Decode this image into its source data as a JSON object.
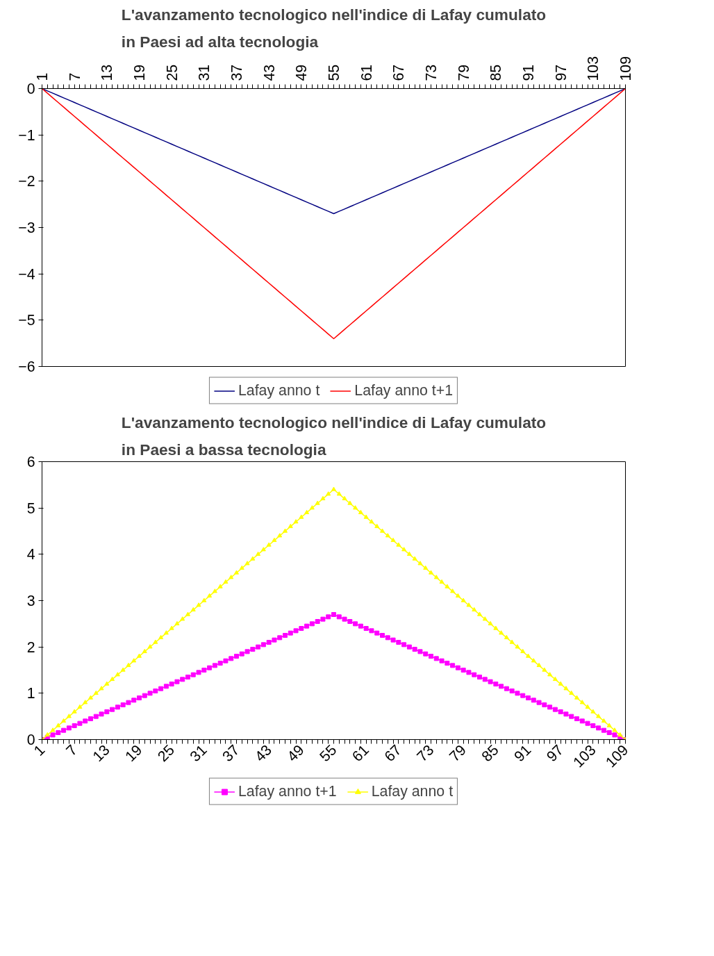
{
  "chart_data": [
    {
      "type": "line",
      "title": "L'avanzamento tecnologico nell'indice di Lafay cumulato\nin Paesi ad alta tecnologia",
      "categories": [
        "1",
        null,
        null,
        null,
        null,
        null,
        "7",
        null,
        null,
        null,
        null,
        null,
        "13",
        null,
        null,
        null,
        null,
        null,
        "19",
        null,
        null,
        null,
        null,
        null,
        "25",
        null,
        null,
        null,
        null,
        null,
        "31",
        null,
        null,
        null,
        null,
        null,
        "37",
        null,
        null,
        null,
        null,
        null,
        "43",
        null,
        null,
        null,
        null,
        null,
        "49",
        null,
        null,
        null,
        null,
        null,
        "55",
        null,
        null,
        null,
        null,
        null,
        "61",
        null,
        null,
        null,
        null,
        null,
        "67",
        null,
        null,
        null,
        null,
        null,
        "73",
        null,
        null,
        null,
        null,
        null,
        "79",
        null,
        null,
        null,
        null,
        null,
        "85",
        null,
        null,
        null,
        null,
        null,
        "91",
        null,
        null,
        null,
        null,
        null,
        "97",
        null,
        null,
        null,
        null,
        null,
        "103",
        null,
        null,
        null,
        null,
        null,
        "109"
      ],
      "ylim": [
        -6,
        0
      ],
      "yticks": [
        -6,
        -5,
        -4,
        -3,
        -2,
        -1,
        0
      ],
      "grid": false,
      "legend": "bottom",
      "marker": "none",
      "series": [
        {
          "name": "Lafay anno t",
          "color": "#000080",
          "values": [
            0,
            -0.05,
            -0.1,
            -0.15,
            -0.2,
            -0.25,
            -0.3,
            -0.35,
            -0.4,
            -0.45,
            -0.5,
            -0.55,
            -0.6,
            -0.65,
            -0.7,
            -0.75,
            -0.8,
            -0.85,
            -0.9,
            -0.95,
            -1,
            -1.05,
            -1.1,
            -1.15,
            -1.2,
            -1.25,
            -1.3,
            -1.35,
            -1.4,
            -1.45,
            -1.5,
            -1.55,
            -1.6,
            -1.65,
            -1.7,
            -1.75,
            -1.8,
            -1.85,
            -1.9,
            -1.95,
            -2,
            -2.05,
            -2.1,
            -2.15,
            -2.2,
            -2.25,
            -2.3,
            -2.35,
            -2.4,
            -2.45,
            -2.5,
            -2.55,
            -2.6,
            -2.65,
            -2.7,
            -2.65,
            -2.6,
            -2.55,
            -2.5,
            -2.45,
            -2.4,
            -2.35,
            -2.3,
            -2.25,
            -2.2,
            -2.15,
            -2.1,
            -2.05,
            -2,
            -1.95,
            -1.9,
            -1.85,
            -1.8,
            -1.75,
            -1.7,
            -1.65,
            -1.6,
            -1.55,
            -1.5,
            -1.45,
            -1.4,
            -1.35,
            -1.3,
            -1.25,
            -1.2,
            -1.15,
            -1.1,
            -1.05,
            -1,
            -0.95,
            -0.9,
            -0.85,
            -0.8,
            -0.75,
            -0.7,
            -0.65,
            -0.6,
            -0.55,
            -0.5,
            -0.45,
            -0.4,
            -0.35,
            -0.3,
            -0.25,
            -0.2,
            -0.15,
            -0.1,
            -0.05,
            0
          ]
        },
        {
          "name": "Lafay anno t+1",
          "color": "#ff0000",
          "values": [
            0,
            -0.1,
            -0.2,
            -0.3,
            -0.4,
            -0.5,
            -0.6,
            -0.7,
            -0.8,
            -0.9,
            -1,
            -1.1,
            -1.2,
            -1.3,
            -1.4,
            -1.5,
            -1.6,
            -1.7,
            -1.8,
            -1.9,
            -2,
            -2.1,
            -2.2,
            -2.3,
            -2.4,
            -2.5,
            -2.6,
            -2.7,
            -2.8,
            -2.9,
            -3,
            -3.1,
            -3.2,
            -3.3,
            -3.4,
            -3.5,
            -3.6,
            -3.7,
            -3.8,
            -3.9,
            -4,
            -4.1,
            -4.2,
            -4.3,
            -4.4,
            -4.5,
            -4.6,
            -4.7,
            -4.8,
            -4.9,
            -5,
            -5.1,
            -5.2,
            -5.3,
            -5.4,
            -5.3,
            -5.2,
            -5.1,
            -5,
            -4.9,
            -4.8,
            -4.7,
            -4.6,
            -4.5,
            -4.4,
            -4.3,
            -4.2,
            -4.1,
            -4,
            -3.9,
            -3.8,
            -3.7,
            -3.6,
            -3.5,
            -3.4,
            -3.3,
            -3.2,
            -3.1,
            -3,
            -2.9,
            -2.8,
            -2.7,
            -2.6,
            -2.5,
            -2.4,
            -2.3,
            -2.2,
            -2.1,
            -2,
            -1.9,
            -1.8,
            -1.7,
            -1.6,
            -1.5,
            -1.4,
            -1.3,
            -1.2,
            -1.1,
            -1,
            -0.9,
            -0.8,
            -0.7,
            -0.6,
            -0.5,
            -0.4,
            -0.3,
            -0.2,
            -0.1,
            0
          ]
        }
      ]
    },
    {
      "type": "line",
      "title": "L'avanzamento tecnologico nell'indice di Lafay cumulato\nin Paesi a bassa tecnologia",
      "categories": [
        "1",
        null,
        null,
        null,
        null,
        null,
        "7",
        null,
        null,
        null,
        null,
        null,
        "13",
        null,
        null,
        null,
        null,
        null,
        "19",
        null,
        null,
        null,
        null,
        null,
        "25",
        null,
        null,
        null,
        null,
        null,
        "31",
        null,
        null,
        null,
        null,
        null,
        "37",
        null,
        null,
        null,
        null,
        null,
        "43",
        null,
        null,
        null,
        null,
        null,
        "49",
        null,
        null,
        null,
        null,
        null,
        "55",
        null,
        null,
        null,
        null,
        null,
        "61",
        null,
        null,
        null,
        null,
        null,
        "67",
        null,
        null,
        null,
        null,
        null,
        "73",
        null,
        null,
        null,
        null,
        null,
        "79",
        null,
        null,
        null,
        null,
        null,
        "85",
        null,
        null,
        null,
        null,
        null,
        "91",
        null,
        null,
        null,
        null,
        null,
        "97",
        null,
        null,
        null,
        null,
        null,
        "103",
        null,
        null,
        null,
        null,
        null,
        "109"
      ],
      "ylim": [
        0,
        6
      ],
      "yticks": [
        0,
        1,
        2,
        3,
        4,
        5,
        6
      ],
      "grid": false,
      "legend": "bottom",
      "series": [
        {
          "name": "Lafay anno t+1",
          "color": "#ff00ff",
          "marker": "square",
          "values": [
            0,
            0.05,
            0.1,
            0.15,
            0.2,
            0.25,
            0.3,
            0.35,
            0.4,
            0.45,
            0.5,
            0.55,
            0.6,
            0.65,
            0.7,
            0.75,
            0.8,
            0.85,
            0.9,
            0.95,
            1,
            1.05,
            1.1,
            1.15,
            1.2,
            1.25,
            1.3,
            1.35,
            1.4,
            1.45,
            1.5,
            1.55,
            1.6,
            1.65,
            1.7,
            1.75,
            1.8,
            1.85,
            1.9,
            1.95,
            2,
            2.05,
            2.1,
            2.15,
            2.2,
            2.25,
            2.3,
            2.35,
            2.4,
            2.45,
            2.5,
            2.55,
            2.6,
            2.65,
            2.7,
            2.65,
            2.6,
            2.55,
            2.5,
            2.45,
            2.4,
            2.35,
            2.3,
            2.25,
            2.2,
            2.15,
            2.1,
            2.05,
            2,
            1.95,
            1.9,
            1.85,
            1.8,
            1.75,
            1.7,
            1.65,
            1.6,
            1.55,
            1.5,
            1.45,
            1.4,
            1.35,
            1.3,
            1.25,
            1.2,
            1.15,
            1.1,
            1.05,
            1,
            0.95,
            0.9,
            0.85,
            0.8,
            0.75,
            0.7,
            0.65,
            0.6,
            0.55,
            0.5,
            0.45,
            0.4,
            0.35,
            0.3,
            0.25,
            0.2,
            0.15,
            0.1,
            0.05,
            0
          ]
        },
        {
          "name": "Lafay anno t",
          "color": "#ffff00",
          "marker": "triangle",
          "values": [
            0,
            0.1,
            0.2,
            0.3,
            0.4,
            0.5,
            0.6,
            0.7,
            0.8,
            0.9,
            1,
            1.1,
            1.2,
            1.3,
            1.4,
            1.5,
            1.6,
            1.7,
            1.8,
            1.9,
            2,
            2.1,
            2.2,
            2.3,
            2.4,
            2.5,
            2.6,
            2.7,
            2.8,
            2.9,
            3,
            3.1,
            3.2,
            3.3,
            3.4,
            3.5,
            3.6,
            3.7,
            3.8,
            3.9,
            4,
            4.1,
            4.2,
            4.3,
            4.4,
            4.5,
            4.6,
            4.7,
            4.8,
            4.9,
            5,
            5.1,
            5.2,
            5.3,
            5.4,
            5.3,
            5.2,
            5.1,
            5,
            4.9,
            4.8,
            4.7,
            4.6,
            4.5,
            4.4,
            4.3,
            4.2,
            4.1,
            4,
            3.9,
            3.8,
            3.7,
            3.6,
            3.5,
            3.4,
            3.3,
            3.2,
            3.1,
            3,
            2.9,
            2.8,
            2.7,
            2.6,
            2.5,
            2.4,
            2.3,
            2.2,
            2.1,
            2,
            1.9,
            1.8,
            1.7,
            1.6,
            1.5,
            1.4,
            1.3,
            1.2,
            1.1,
            1,
            0.9,
            0.8,
            0.7,
            0.6,
            0.5,
            0.4,
            0.3,
            0.2,
            0.1,
            0
          ]
        }
      ]
    }
  ]
}
